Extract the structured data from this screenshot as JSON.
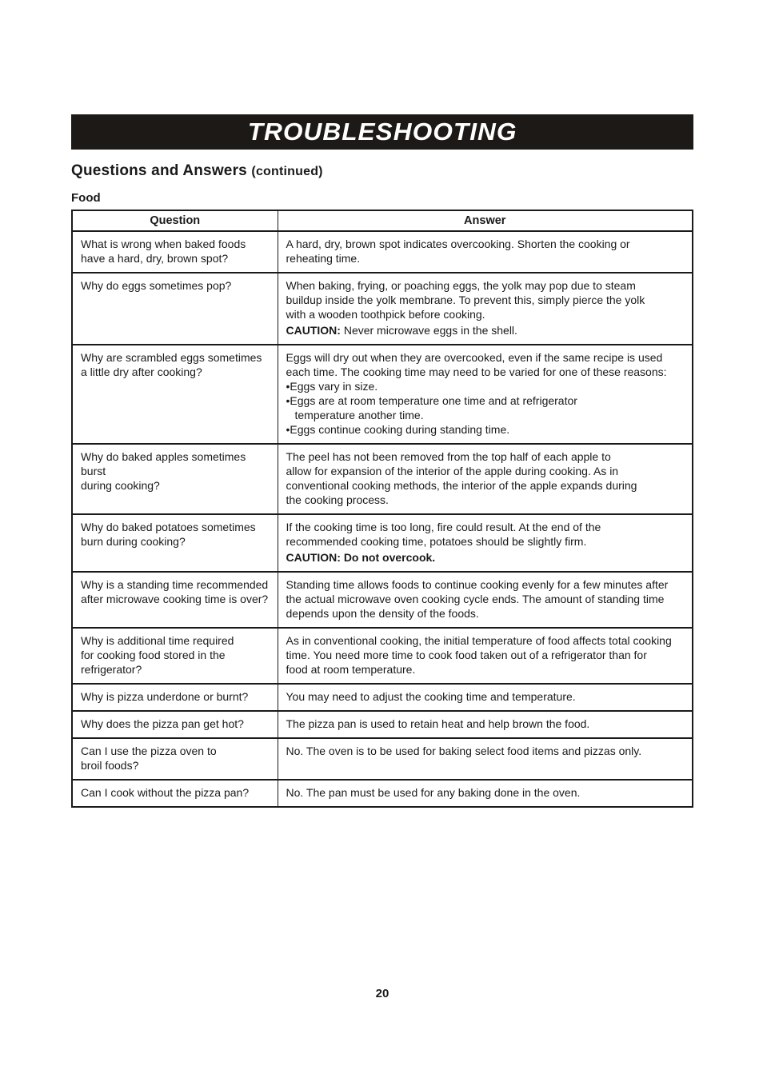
{
  "page": {
    "banner_title": "TROUBLESHOOTING",
    "section_title": "Questions and Answers",
    "section_title_suffix": "(continued)",
    "subsection_title": "Food",
    "page_number": "20"
  },
  "table": {
    "headers": [
      "Question",
      "Answer"
    ],
    "rows": [
      {
        "question": "What is wrong when baked foods\nhave a hard, dry, brown spot?",
        "answer": [
          {
            "type": "text",
            "text": "A hard, dry, brown spot indicates overcooking. Shorten the cooking or\nreheating time."
          }
        ]
      },
      {
        "question": "Why do eggs sometimes pop?",
        "answer": [
          {
            "type": "text",
            "text": "When baking, frying, or poaching eggs, the yolk may pop due to steam\nbuildup inside the yolk membrane. To prevent this, simply pierce the yolk\nwith a wooden toothpick before cooking."
          },
          {
            "type": "caution",
            "bold": "CAUTION:",
            "text": " Never microwave eggs in the shell."
          }
        ]
      },
      {
        "question": "Why are scrambled eggs sometimes\na little dry after cooking?",
        "answer": [
          {
            "type": "text",
            "text": "Eggs will dry out when they are overcooked, even if the same recipe is used\neach time. The cooking time may need to be varied for one of these reasons:"
          },
          {
            "type": "bullet",
            "text": "Eggs vary in size."
          },
          {
            "type": "bullet",
            "text": "Eggs are at room temperature one time and at refrigerator\ntemperature another time."
          },
          {
            "type": "bullet",
            "text": "Eggs continue cooking during standing time."
          }
        ]
      },
      {
        "question": "Why do baked apples sometimes burst\nduring cooking?",
        "answer": [
          {
            "type": "text",
            "text": "The peel has not been removed from the top half of each apple to\nallow for expansion of the interior of the apple during cooking. As in\nconventional cooking methods, the interior of the apple expands during\nthe cooking process."
          }
        ]
      },
      {
        "question": "Why do baked potatoes sometimes\nburn during cooking?",
        "answer": [
          {
            "type": "text",
            "text": "If the cooking time is too long, fire could result. At the end of the\nrecommended cooking time, potatoes should be slightly firm."
          },
          {
            "type": "caution",
            "bold": "CAUTION: Do not overcook.",
            "text": ""
          }
        ]
      },
      {
        "question": "Why is a standing time recommended\nafter microwave cooking time is over?",
        "answer": [
          {
            "type": "text",
            "text": "Standing time allows foods to continue cooking evenly for a few minutes after\nthe actual microwave oven cooking cycle ends. The amount of standing time\ndepends upon the density of the foods."
          }
        ]
      },
      {
        "question": "Why is additional time required\nfor cooking food stored in the\nrefrigerator?",
        "answer": [
          {
            "type": "text",
            "text": "As in conventional cooking, the initial temperature of food affects total cooking\ntime. You need more time to cook food taken out of a refrigerator than for\nfood at room temperature."
          }
        ]
      },
      {
        "question": "Why is pizza underdone or burnt?",
        "answer": [
          {
            "type": "text",
            "text": "You may need to adjust the cooking time and temperature."
          }
        ]
      },
      {
        "question": "Why does the pizza pan get hot?",
        "answer": [
          {
            "type": "text",
            "text": "The pizza pan is used to retain heat and help brown the food."
          }
        ]
      },
      {
        "question": "Can I use the pizza oven to\nbroil foods?",
        "answer": [
          {
            "type": "text",
            "text": "No. The oven is to be used for baking select food items and pizzas only."
          }
        ]
      },
      {
        "question": "Can I cook without the pizza pan?",
        "answer": [
          {
            "type": "text",
            "text": "No. The pan must be used for any baking done in the oven."
          }
        ]
      }
    ]
  }
}
